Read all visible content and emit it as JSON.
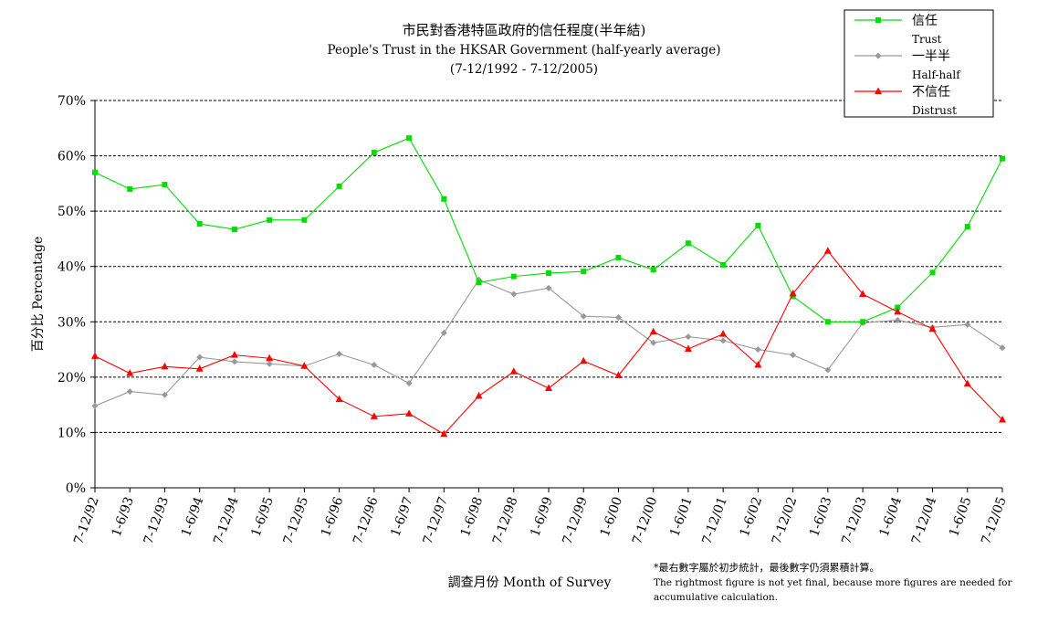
{
  "chart_data": {
    "type": "line",
    "title_zh": "市民對香港特區政府的信任程度(半年結)",
    "title_en": "People's Trust in the HKSAR Government (half-yearly average)",
    "period": "(7-12/1992 - 7-12/2005)",
    "ylabel": "百分比 Percentage",
    "xlabel": "調查月份 Month of Survey",
    "ylim": [
      0,
      70
    ],
    "yticks": [
      "0%",
      "10%",
      "20%",
      "30%",
      "40%",
      "50%",
      "60%",
      "70%"
    ],
    "grid": "horizontal dashed",
    "legend_position": "top-right",
    "categories": [
      "7-12/92",
      "1-6/93",
      "7-12/93",
      "1-6/94",
      "7-12/94",
      "1-6/95",
      "7-12/95",
      "1-6/96",
      "7-12/96",
      "1-6/97",
      "7-12/97",
      "1-6/98",
      "7-12/98",
      "1-6/99",
      "7-12/99",
      "1-6/00",
      "7-12/00",
      "1-6/01",
      "7-12/01",
      "1-6/02",
      "7-12/02",
      "1-6/03",
      "7-12/03",
      "1-6/04",
      "7-12/04",
      "1-6/05",
      "7-12/05"
    ],
    "series": [
      {
        "name": "信任",
        "name_en": "Trust",
        "color": "#00dd00",
        "marker": "square",
        "values": [
          57.0,
          54.0,
          54.8,
          47.7,
          46.7,
          48.4,
          48.4,
          54.5,
          60.6,
          63.2,
          52.2,
          37.1,
          38.2,
          38.8,
          39.1,
          41.6,
          39.4,
          44.2,
          40.3,
          47.4,
          34.6,
          30.0,
          30.0,
          32.6,
          38.9,
          47.2,
          59.5
        ]
      },
      {
        "name": "一半半",
        "name_en": "Half-half",
        "color": "#999999",
        "marker": "diamond",
        "values": [
          14.8,
          17.4,
          16.8,
          23.6,
          22.8,
          22.4,
          22.0,
          24.2,
          22.2,
          18.9,
          28.0,
          37.6,
          35.0,
          36.1,
          31.0,
          30.8,
          26.2,
          27.3,
          26.6,
          25.0,
          24.0,
          21.3,
          29.8,
          30.3,
          29.0,
          29.5,
          25.3
        ]
      },
      {
        "name": "不信任",
        "name_en": "Distrust",
        "color": "#ff0000",
        "marker": "triangle",
        "values": [
          23.8,
          20.7,
          21.9,
          21.5,
          24.0,
          23.4,
          22.0,
          16.0,
          12.9,
          13.4,
          9.7,
          16.6,
          21.0,
          18.0,
          22.9,
          20.3,
          28.2,
          25.1,
          27.8,
          22.2,
          35.1,
          42.8,
          35.0,
          31.8,
          28.7,
          18.8,
          12.3
        ]
      }
    ]
  },
  "footnote": {
    "zh": "*最右數字屬於初步統計，最後數字仍須累積計算。",
    "en_line1": "The rightmost figure is not yet final, because more figures are needed for",
    "en_line2": "accumulative calculation."
  }
}
